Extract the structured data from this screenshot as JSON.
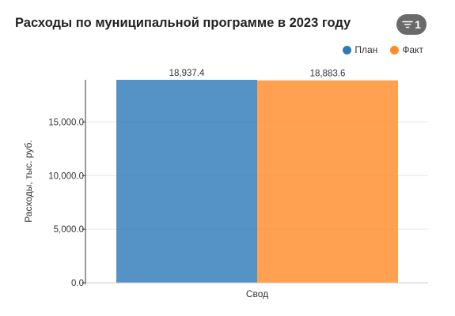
{
  "header": {
    "title": "Расходы по муниципальной программе в 2023 году",
    "filter_count": "1",
    "filter_icon": "filter-icon"
  },
  "legend": [
    {
      "label": "План",
      "color": "#2f7ab8"
    },
    {
      "label": "Факт",
      "color": "#ff8c2a"
    }
  ],
  "chart_data": {
    "type": "bar",
    "categories": [
      "Свод"
    ],
    "series": [
      {
        "name": "План",
        "values": [
          18937.4
        ],
        "color": "#2f7ab8"
      },
      {
        "name": "Факт",
        "values": [
          18883.6
        ],
        "color": "#ff8c2a"
      }
    ],
    "data_labels": [
      "18,937.4",
      "18,883.6"
    ],
    "ylabel": "Расходы, тыс. руб.",
    "yticks": [
      0,
      5000,
      10000,
      15000
    ],
    "ytick_labels": [
      "0.0",
      "5,000.0",
      "10,000.0",
      "15,000.0"
    ],
    "ylim": [
      0,
      18937.4
    ],
    "grid": true,
    "legend_position": "top-right"
  }
}
